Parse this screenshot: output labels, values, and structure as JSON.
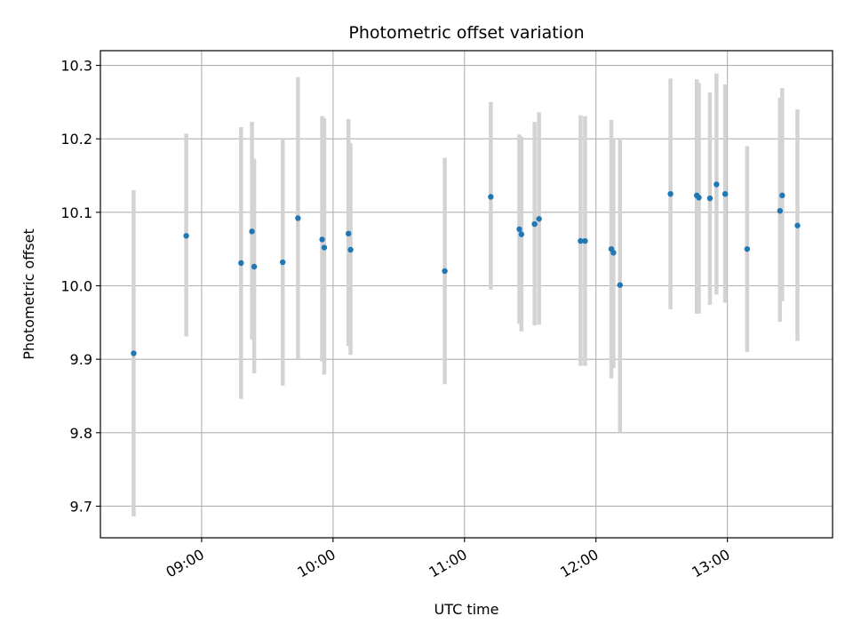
{
  "chart_data": {
    "type": "scatter",
    "title": "Photometric offset variation",
    "xlabel": "UTC time",
    "ylabel": "Photometric offset",
    "x_unit": "hours (UTC)",
    "xlim": [
      8.23,
      13.8
    ],
    "ylim": [
      9.657,
      10.32
    ],
    "x_ticks": [
      {
        "value": 9,
        "label": "09:00"
      },
      {
        "value": 10,
        "label": "10:00"
      },
      {
        "value": 11,
        "label": "11:00"
      },
      {
        "value": 12,
        "label": "12:00"
      },
      {
        "value": 13,
        "label": "13:00"
      }
    ],
    "y_ticks": [
      {
        "value": 9.7,
        "label": "9.7"
      },
      {
        "value": 9.8,
        "label": "9.8"
      },
      {
        "value": 9.9,
        "label": "9.9"
      },
      {
        "value": 10.0,
        "label": "10.0"
      },
      {
        "value": 10.1,
        "label": "10.1"
      },
      {
        "value": 10.2,
        "label": "10.2"
      },
      {
        "value": 10.3,
        "label": "10.3"
      }
    ],
    "grid": true,
    "marker_color": "#1f77b4",
    "errorbar_color": "#d3d3d3",
    "points": [
      {
        "x": 8.483,
        "y": 9.908,
        "low": 9.686,
        "high": 10.13
      },
      {
        "x": 8.883,
        "y": 10.068,
        "low": 9.931,
        "high": 10.207
      },
      {
        "x": 9.3,
        "y": 10.031,
        "low": 9.846,
        "high": 10.216
      },
      {
        "x": 9.383,
        "y": 10.074,
        "low": 9.927,
        "high": 10.223
      },
      {
        "x": 9.4,
        "y": 10.026,
        "low": 9.881,
        "high": 10.173
      },
      {
        "x": 9.617,
        "y": 10.032,
        "low": 9.864,
        "high": 10.2
      },
      {
        "x": 9.733,
        "y": 10.092,
        "low": 9.9,
        "high": 10.284
      },
      {
        "x": 9.917,
        "y": 10.063,
        "low": 9.897,
        "high": 10.231
      },
      {
        "x": 9.933,
        "y": 10.052,
        "low": 9.879,
        "high": 10.228
      },
      {
        "x": 10.117,
        "y": 10.071,
        "low": 9.918,
        "high": 10.227
      },
      {
        "x": 10.133,
        "y": 10.049,
        "low": 9.906,
        "high": 10.194
      },
      {
        "x": 10.85,
        "y": 10.02,
        "low": 9.866,
        "high": 10.174
      },
      {
        "x": 11.2,
        "y": 10.121,
        "low": 9.995,
        "high": 10.25
      },
      {
        "x": 11.417,
        "y": 10.077,
        "low": 9.948,
        "high": 10.206
      },
      {
        "x": 11.433,
        "y": 10.07,
        "low": 9.938,
        "high": 10.203
      },
      {
        "x": 11.533,
        "y": 10.084,
        "low": 9.946,
        "high": 10.223
      },
      {
        "x": 11.567,
        "y": 10.091,
        "low": 9.947,
        "high": 10.236
      },
      {
        "x": 11.883,
        "y": 10.061,
        "low": 9.891,
        "high": 10.232
      },
      {
        "x": 11.917,
        "y": 10.061,
        "low": 9.891,
        "high": 10.231
      },
      {
        "x": 12.117,
        "y": 10.05,
        "low": 9.874,
        "high": 10.226
      },
      {
        "x": 12.133,
        "y": 10.045,
        "low": 9.888,
        "high": 10.201
      },
      {
        "x": 12.183,
        "y": 10.001,
        "low": 9.8,
        "high": 10.2
      },
      {
        "x": 12.567,
        "y": 10.125,
        "low": 9.968,
        "high": 10.282
      },
      {
        "x": 12.767,
        "y": 10.123,
        "low": 9.962,
        "high": 10.281
      },
      {
        "x": 12.783,
        "y": 10.12,
        "low": 9.962,
        "high": 10.276
      },
      {
        "x": 12.867,
        "y": 10.119,
        "low": 9.974,
        "high": 10.263
      },
      {
        "x": 12.917,
        "y": 10.138,
        "low": 9.988,
        "high": 10.289
      },
      {
        "x": 12.983,
        "y": 10.125,
        "low": 9.977,
        "high": 10.274
      },
      {
        "x": 13.15,
        "y": 10.05,
        "low": 9.91,
        "high": 10.19
      },
      {
        "x": 13.4,
        "y": 10.102,
        "low": 9.951,
        "high": 10.256
      },
      {
        "x": 13.417,
        "y": 10.123,
        "low": 9.979,
        "high": 10.269
      },
      {
        "x": 13.533,
        "y": 10.082,
        "low": 9.925,
        "high": 10.24
      }
    ]
  }
}
